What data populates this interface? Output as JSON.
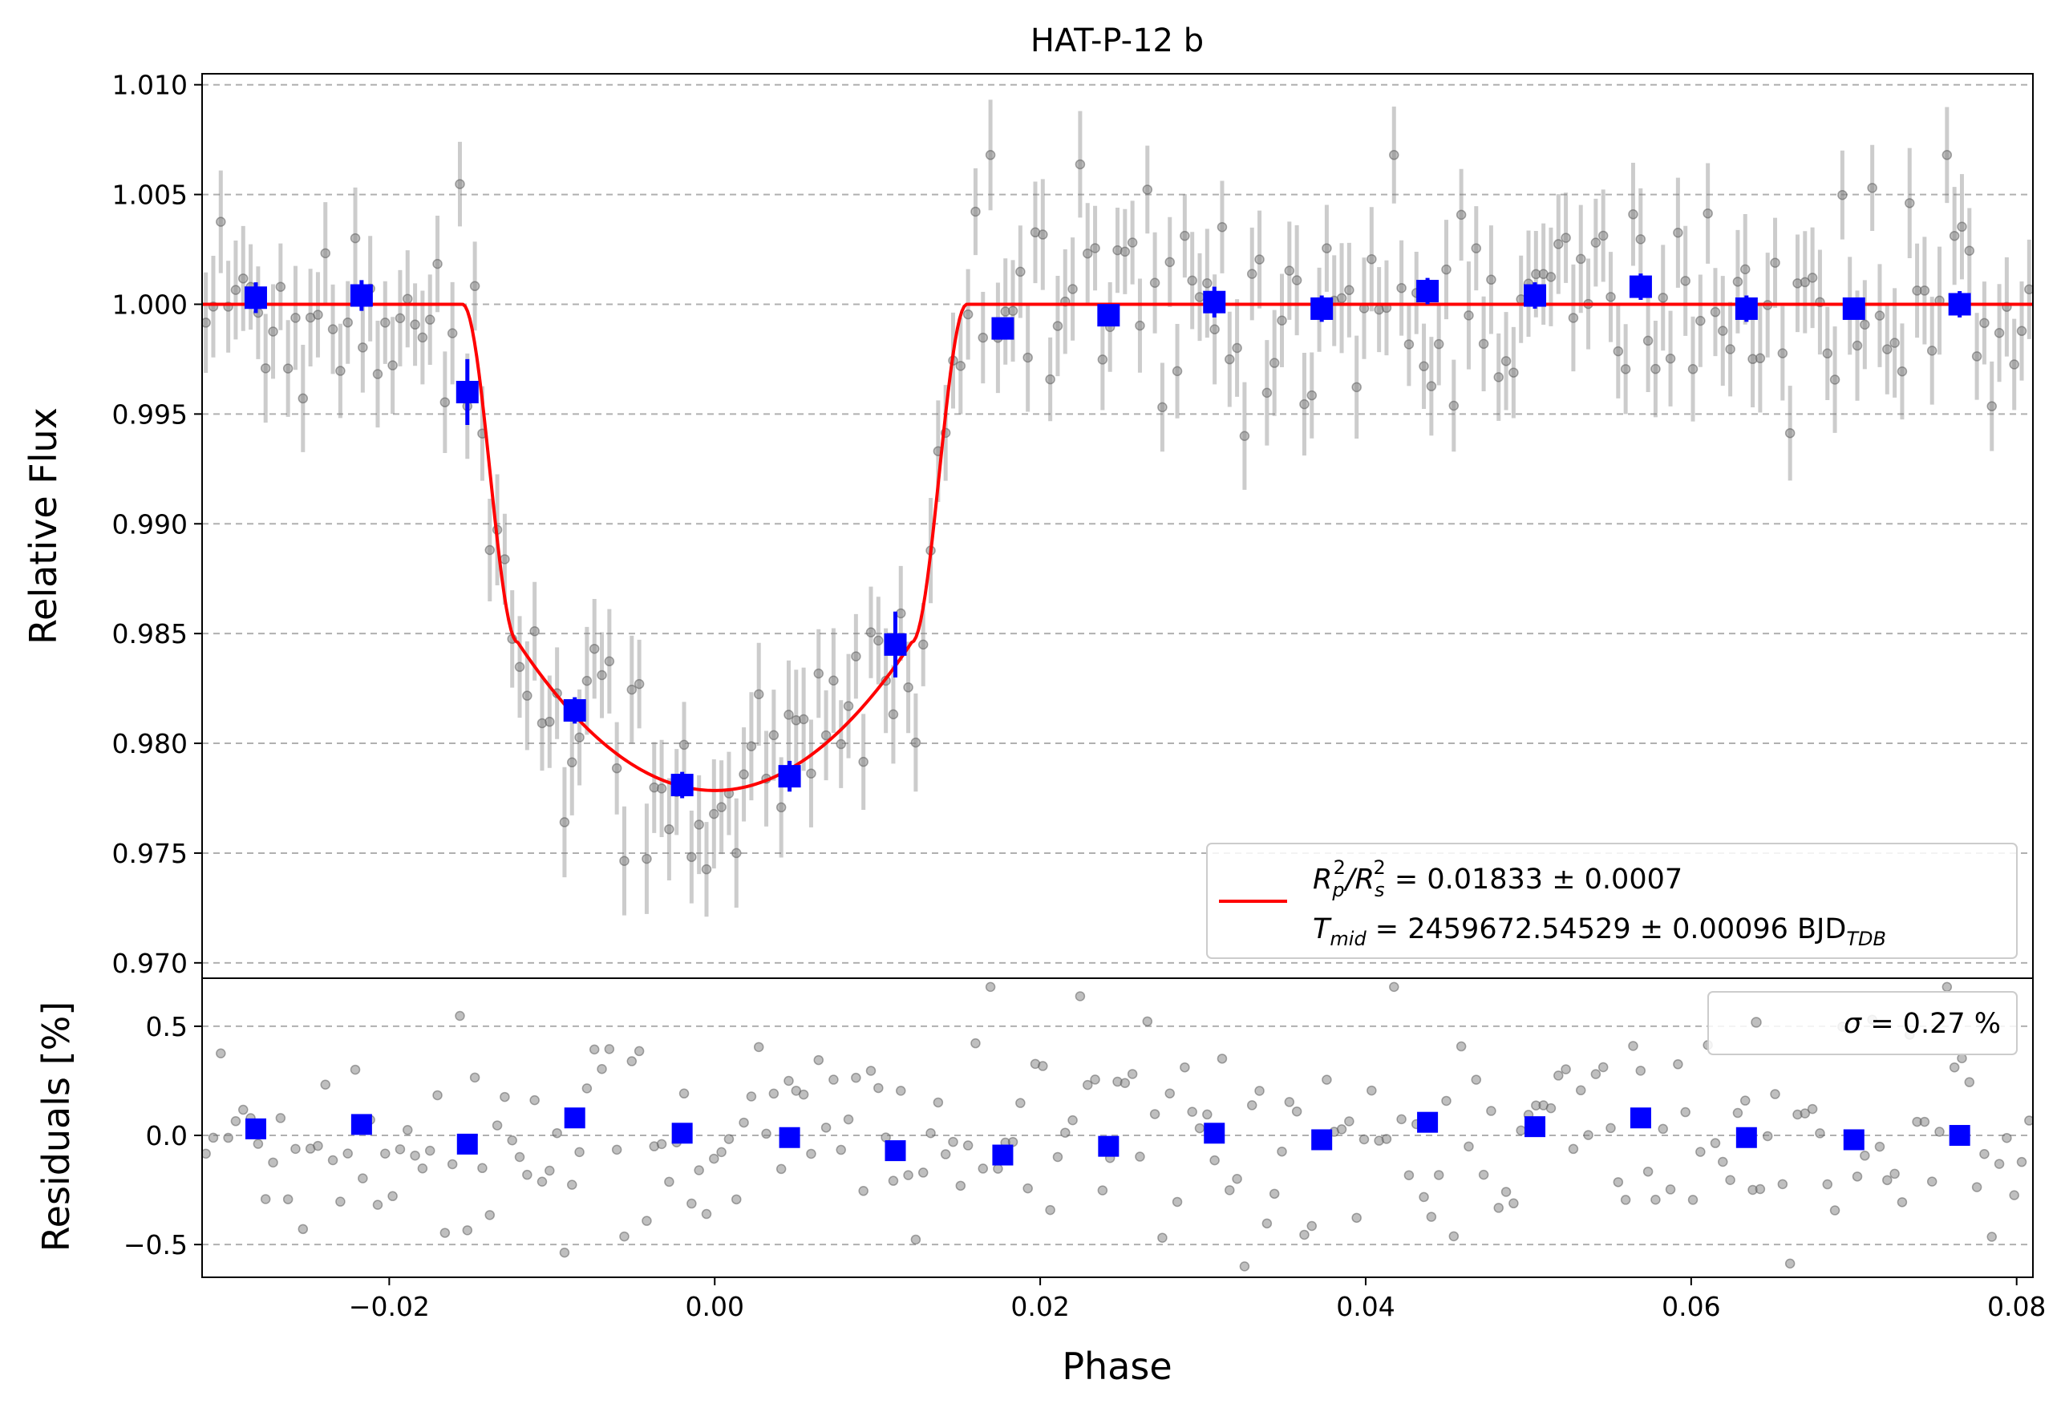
{
  "chart_data": {
    "type": "scatter",
    "title": "HAT-P-12 b",
    "top_panel": {
      "ylabel": "Relative Flux",
      "xlim": [
        -0.0315,
        0.081
      ],
      "ylim": [
        0.9693,
        1.0105
      ],
      "yticks": [
        0.97,
        0.975,
        0.98,
        0.985,
        0.99,
        0.995,
        1.0,
        1.005,
        1.01
      ],
      "ytick_labels": [
        "0.970",
        "0.975",
        "0.980",
        "0.985",
        "0.990",
        "0.995",
        "1.000",
        "1.005",
        "1.010"
      ],
      "grid": "horizontal-dashed",
      "legend": {
        "placement": "lower-right",
        "line1_parts": [
          "R",
          "p",
          "2",
          "/R",
          "s",
          "2",
          " = 0.01833 ± 0.0007"
        ],
        "line2_parts": [
          "T",
          "mid",
          " = 2459672.54529 ± 0.00096 BJD",
          "TDB"
        ],
        "line_color": "#ff0000"
      },
      "binned": {
        "x": [
          -0.0282,
          -0.0217,
          -0.0152,
          -0.0086,
          -0.002,
          0.0046,
          0.0111,
          0.0177,
          0.0242,
          0.0307,
          0.0373,
          0.0438,
          0.0504,
          0.0569,
          0.0634,
          0.07,
          0.0765
        ],
        "y": [
          1.0003,
          1.0004,
          0.996,
          0.9815,
          0.9781,
          0.9785,
          0.9845,
          0.9989,
          0.9995,
          1.0001,
          0.9998,
          1.0006,
          1.0004,
          1.0008,
          0.9998,
          0.9998,
          1.0
        ],
        "err": [
          0.0007,
          0.0007,
          0.0015,
          0.0006,
          0.0006,
          0.0007,
          0.0015,
          0.0005,
          0.0004,
          0.0007,
          0.0006,
          0.0006,
          0.0006,
          0.0006,
          0.0006,
          0.0005,
          0.0006
        ],
        "color": "#0000ff"
      },
      "model": {
        "color": "#ff0000",
        "depth": 0.02215,
        "ingress_start": -0.0155,
        "ingress_end": -0.0121,
        "egress_start": 0.0121,
        "egress_end": 0.0155
      },
      "raw_color": "#808080",
      "raw_error": 0.0022
    },
    "bottom_panel": {
      "xlabel": "Phase",
      "ylabel": "Residuals [%]",
      "ylim": [
        -0.65,
        0.72
      ],
      "yticks": [
        -0.5,
        0.0,
        0.5
      ],
      "ytick_labels": [
        "−0.5",
        "0.0",
        "0.5"
      ],
      "legend": {
        "placement": "upper-right",
        "label_parts": [
          "σ",
          " = 0.27 %"
        ]
      },
      "binned_residuals": [
        0.03,
        0.05,
        -0.04,
        0.08,
        0.01,
        -0.01,
        -0.07,
        -0.09,
        -0.05,
        0.01,
        -0.02,
        0.06,
        0.04,
        0.08,
        -0.01,
        -0.02,
        0.0
      ]
    },
    "xticks": [
      -0.02,
      0.0,
      0.02,
      0.04,
      0.06,
      0.08
    ],
    "xtick_labels": [
      "−0.02",
      "0.00",
      "0.02",
      "0.04",
      "0.06",
      "0.08"
    ]
  }
}
